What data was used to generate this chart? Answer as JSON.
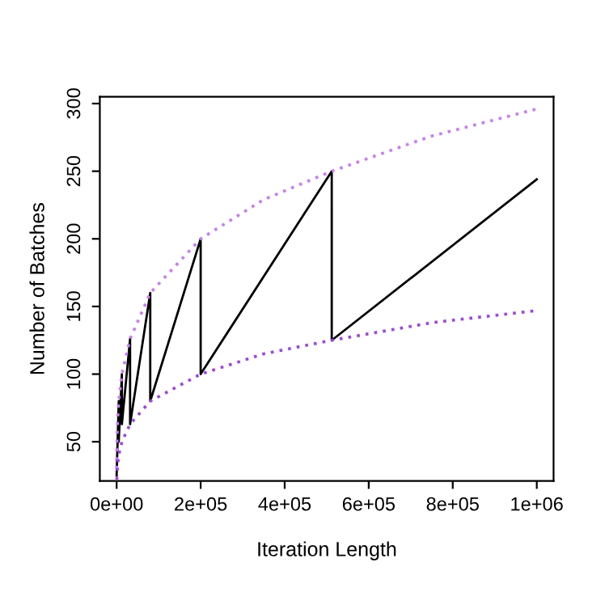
{
  "chart_data": {
    "type": "line",
    "xlabel": "Iteration Length",
    "ylabel": "Number of Batches",
    "series": [
      {
        "color": "#000000",
        "line_style": "solid",
        "x": [
          0,
          5000,
          5000,
          12500,
          12500,
          32000,
          32000,
          80000,
          80000,
          200000,
          200000,
          512000,
          512000,
          1000000
        ],
        "values": [
          25,
          80,
          50,
          100,
          63,
          126,
          63,
          160,
          80,
          200,
          100,
          250,
          125,
          244
        ]
      },
      {
        "color": "#cc77ff",
        "line_style": "dotted",
        "x": [
          100,
          500,
          1000,
          2500,
          5000,
          12500,
          32000,
          80000,
          200000,
          350000,
          512000,
          750000,
          1000000
        ],
        "values": [
          30,
          45,
          53,
          67,
          80,
          100,
          126,
          160,
          200,
          229,
          250,
          276,
          296
        ]
      },
      {
        "color": "#a040f0",
        "line_style": "dotted",
        "x": [
          500,
          1000,
          2500,
          5000,
          12500,
          32000,
          80000,
          200000,
          350000,
          512000,
          750000,
          1000000
        ],
        "values": [
          22,
          26,
          33,
          40,
          50,
          63,
          80,
          100,
          115,
          125,
          138,
          147
        ]
      }
    ],
    "xlim": [
      -40000,
      1040000
    ],
    "ylim": [
      21,
      305
    ],
    "xticks": [
      {
        "value": 0,
        "label": "0e+00"
      },
      {
        "value": 200000,
        "label": "2e+05"
      },
      {
        "value": 400000,
        "label": "4e+05"
      },
      {
        "value": 600000,
        "label": "6e+05"
      },
      {
        "value": 800000,
        "label": "8e+05"
      },
      {
        "value": 1000000,
        "label": "1e+06"
      }
    ],
    "yticks": [
      50,
      100,
      150,
      200,
      250,
      300
    ]
  }
}
